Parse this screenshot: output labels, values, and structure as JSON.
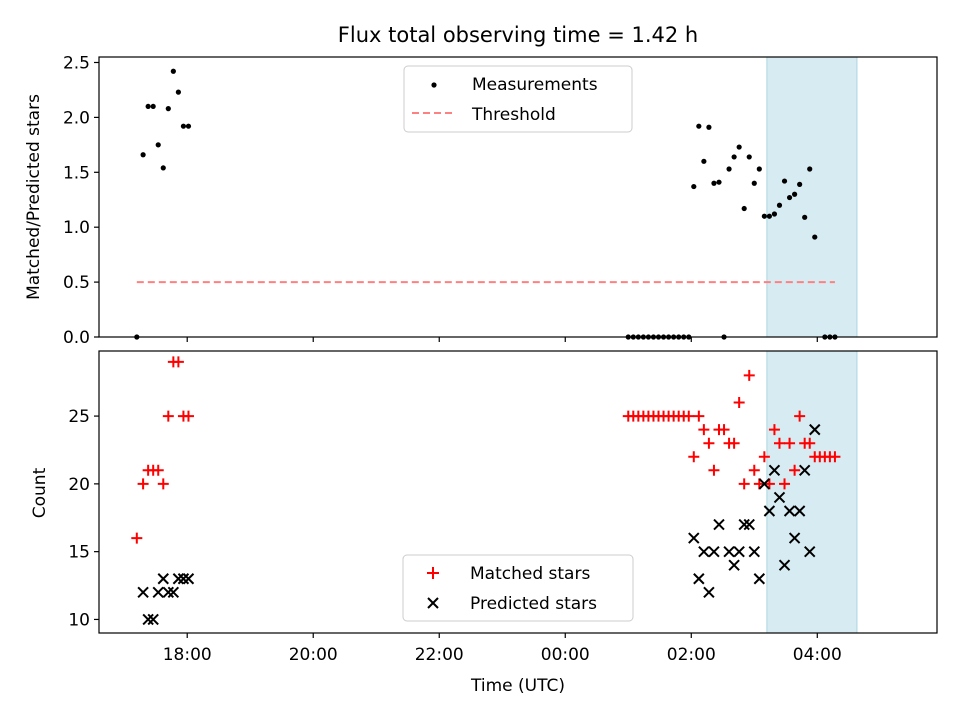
{
  "chart_data": [
    {
      "type": "scatter",
      "title": "Flux total observing time = 1.42 h",
      "ylabel": "Matched/Predicted stars",
      "xlabel": "",
      "x_unit": "hours since 17:00 UTC",
      "xlim": [
        -0.4,
        12.9
      ],
      "ylim": [
        0,
        2.55
      ],
      "yticks": [
        "0.0",
        "0.5",
        "1.0",
        "1.5",
        "2.0",
        "2.5"
      ],
      "legend_placement": "top-center",
      "highlight_span": [
        10.2,
        11.63
      ],
      "series": [
        {
          "name": "Measurements",
          "color": "#000000",
          "points": [
            [
              0.2,
              0.0
            ],
            [
              0.3,
              1.66
            ],
            [
              0.38,
              2.1
            ],
            [
              0.46,
              2.1
            ],
            [
              0.54,
              1.75
            ],
            [
              0.62,
              1.54
            ],
            [
              0.7,
              2.08
            ],
            [
              0.78,
              2.42
            ],
            [
              0.86,
              2.23
            ],
            [
              0.94,
              1.92
            ],
            [
              1.02,
              1.92
            ],
            [
              8.0,
              0.0
            ],
            [
              8.08,
              0.0
            ],
            [
              8.16,
              0.0
            ],
            [
              8.24,
              0.0
            ],
            [
              8.32,
              0.0
            ],
            [
              8.4,
              0.0
            ],
            [
              8.48,
              0.0
            ],
            [
              8.56,
              0.0
            ],
            [
              8.64,
              0.0
            ],
            [
              8.72,
              0.0
            ],
            [
              8.8,
              0.0
            ],
            [
              8.88,
              0.0
            ],
            [
              8.96,
              0.0
            ],
            [
              9.04,
              1.37
            ],
            [
              9.12,
              1.92
            ],
            [
              9.2,
              1.6
            ],
            [
              9.28,
              1.91
            ],
            [
              9.36,
              1.4
            ],
            [
              9.44,
              1.41
            ],
            [
              9.52,
              0.0
            ],
            [
              9.6,
              1.53
            ],
            [
              9.68,
              1.64
            ],
            [
              9.76,
              1.73
            ],
            [
              9.84,
              1.17
            ],
            [
              9.92,
              1.64
            ],
            [
              10.0,
              1.4
            ],
            [
              10.08,
              1.53
            ],
            [
              10.16,
              1.1
            ],
            [
              10.24,
              1.1
            ],
            [
              10.32,
              1.12
            ],
            [
              10.4,
              1.2
            ],
            [
              10.48,
              1.42
            ],
            [
              10.56,
              1.27
            ],
            [
              10.64,
              1.3
            ],
            [
              10.72,
              1.39
            ],
            [
              10.8,
              1.09
            ],
            [
              10.88,
              1.53
            ],
            [
              10.96,
              0.91
            ],
            [
              11.12,
              0.0
            ],
            [
              11.2,
              0.0
            ],
            [
              11.28,
              0.0
            ]
          ]
        },
        {
          "name": "Threshold",
          "color": "#ff8080",
          "line_style": "dashed",
          "points": [
            [
              0.2,
              0.5
            ],
            [
              11.28,
              0.5
            ]
          ]
        }
      ]
    },
    {
      "type": "scatter",
      "title": "",
      "xlabel": "Time (UTC)",
      "ylabel": "Count",
      "x_unit": "hours since 17:00 UTC",
      "xlim": [
        -0.4,
        12.9
      ],
      "ylim": [
        9,
        29.8
      ],
      "xticks": [
        "18:00",
        "20:00",
        "22:00",
        "00:00",
        "02:00",
        "04:00"
      ],
      "yticks": [
        "10",
        "15",
        "20",
        "25"
      ],
      "legend_placement": "bottom-center",
      "highlight_span": [
        10.2,
        11.63
      ],
      "series": [
        {
          "name": "Matched stars",
          "color": "#ff0000",
          "marker": "plus",
          "points": [
            [
              0.2,
              16
            ],
            [
              0.3,
              20
            ],
            [
              0.38,
              21
            ],
            [
              0.46,
              21
            ],
            [
              0.54,
              21
            ],
            [
              0.62,
              20
            ],
            [
              0.7,
              25
            ],
            [
              0.78,
              29
            ],
            [
              0.86,
              29
            ],
            [
              0.94,
              25
            ],
            [
              1.02,
              25
            ],
            [
              8.0,
              25
            ],
            [
              8.08,
              25
            ],
            [
              8.16,
              25
            ],
            [
              8.24,
              25
            ],
            [
              8.32,
              25
            ],
            [
              8.4,
              25
            ],
            [
              8.48,
              25
            ],
            [
              8.56,
              25
            ],
            [
              8.64,
              25
            ],
            [
              8.72,
              25
            ],
            [
              8.8,
              25
            ],
            [
              8.88,
              25
            ],
            [
              8.96,
              25
            ],
            [
              9.04,
              22
            ],
            [
              9.12,
              25
            ],
            [
              9.2,
              24
            ],
            [
              9.28,
              23
            ],
            [
              9.36,
              21
            ],
            [
              9.44,
              24
            ],
            [
              9.52,
              24
            ],
            [
              9.6,
              23
            ],
            [
              9.68,
              23
            ],
            [
              9.76,
              26
            ],
            [
              9.84,
              20
            ],
            [
              9.92,
              28
            ],
            [
              10.0,
              21
            ],
            [
              10.08,
              20
            ],
            [
              10.16,
              22
            ],
            [
              10.24,
              20
            ],
            [
              10.32,
              24
            ],
            [
              10.4,
              23
            ],
            [
              10.48,
              20
            ],
            [
              10.56,
              23
            ],
            [
              10.64,
              21
            ],
            [
              10.72,
              25
            ],
            [
              10.8,
              23
            ],
            [
              10.88,
              23
            ],
            [
              10.96,
              22
            ],
            [
              11.04,
              22
            ],
            [
              11.12,
              22
            ],
            [
              11.2,
              22
            ],
            [
              11.28,
              22
            ]
          ]
        },
        {
          "name": "Predicted stars",
          "color": "#000000",
          "marker": "x",
          "points": [
            [
              0.3,
              12
            ],
            [
              0.38,
              10
            ],
            [
              0.46,
              10
            ],
            [
              0.54,
              12
            ],
            [
              0.62,
              13
            ],
            [
              0.7,
              12
            ],
            [
              0.78,
              12
            ],
            [
              0.86,
              13
            ],
            [
              0.94,
              13
            ],
            [
              1.02,
              13
            ],
            [
              9.04,
              16
            ],
            [
              9.12,
              13
            ],
            [
              9.2,
              15
            ],
            [
              9.28,
              12
            ],
            [
              9.36,
              15
            ],
            [
              9.44,
              17
            ],
            [
              9.6,
              15
            ],
            [
              9.68,
              14
            ],
            [
              9.76,
              15
            ],
            [
              9.84,
              17
            ],
            [
              9.92,
              17
            ],
            [
              10.0,
              15
            ],
            [
              10.08,
              13
            ],
            [
              10.16,
              20
            ],
            [
              10.24,
              18
            ],
            [
              10.32,
              21
            ],
            [
              10.4,
              19
            ],
            [
              10.48,
              14
            ],
            [
              10.56,
              18
            ],
            [
              10.64,
              16
            ],
            [
              10.72,
              18
            ],
            [
              10.8,
              21
            ],
            [
              10.88,
              15
            ],
            [
              10.96,
              24
            ]
          ]
        }
      ]
    }
  ]
}
